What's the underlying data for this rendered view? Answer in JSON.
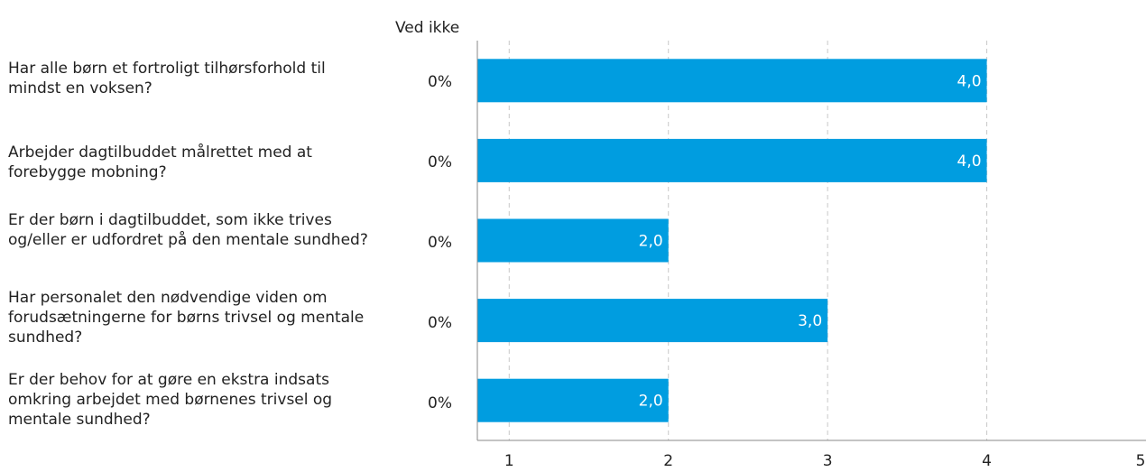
{
  "header": {
    "ved_ikke": "Ved ikke"
  },
  "colors": {
    "bar": "#009de0",
    "grid": "#c8c8c8",
    "axis": "#888888"
  },
  "chart_data": {
    "type": "bar",
    "orientation": "horizontal",
    "categories": [
      "Har alle børn et fortroligt tilhørsforhold til mindst en voksen?",
      "Arbejder dagtilbuddet målrettet med at forebygge mobning?",
      "Er der børn i dagtilbuddet, som ikke trives og/eller er udfordret på den mentale sundhed?",
      "Har personalet den nødvendige viden om forudsætningerne for børns trivsel og mentale sundhed?",
      "Er der behov for at gøre en ekstra indsats omkring arbejdet med børnenes trivsel og mentale sundhed?"
    ],
    "values": [
      4.0,
      4.0,
      2.0,
      3.0,
      2.0
    ],
    "value_labels": [
      "4,0",
      "4,0",
      "2,0",
      "3,0",
      "2,0"
    ],
    "ved_ikke": [
      "0%",
      "0%",
      "0%",
      "0%",
      "0%"
    ],
    "xlim": [
      0.8,
      5
    ],
    "xticks": [
      1,
      2,
      3,
      4,
      5
    ],
    "grid": true
  }
}
